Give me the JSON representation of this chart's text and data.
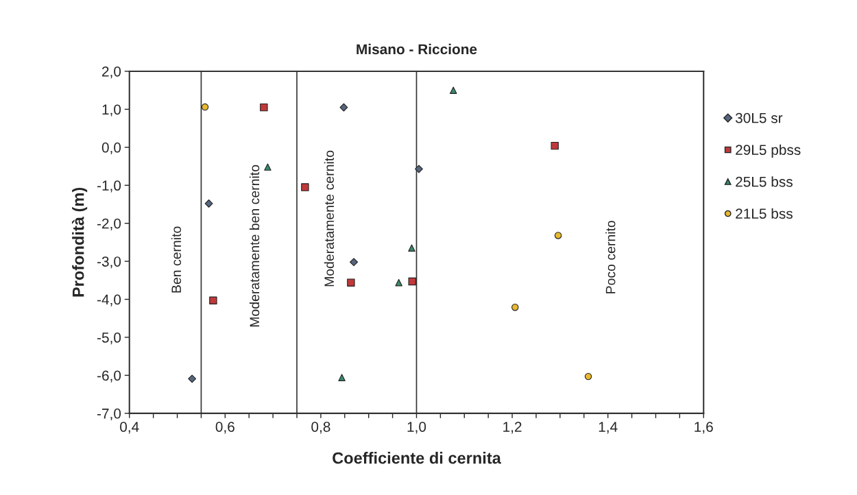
{
  "chart_data": {
    "type": "scatter",
    "title": "Misano - Riccione",
    "xlabel": "Coefficiente di cernita",
    "ylabel": "Profondità (m)",
    "series": [
      {
        "name": "30L5 sr",
        "color": "#56667e",
        "marker": "diamond",
        "x": [
          0.848,
          1.005,
          0.566,
          0.869,
          0.531
        ],
        "values": [
          1.05,
          -0.57,
          -1.48,
          -3.02,
          -6.09
        ]
      },
      {
        "name": "29L5 pbss",
        "color": "#c0393b",
        "marker": "square",
        "x": [
          0.681,
          1.289,
          0.767,
          0.863,
          0.991,
          0.575
        ],
        "values": [
          1.05,
          0.04,
          -1.05,
          -3.56,
          -3.53,
          -4.03
        ]
      },
      {
        "name": "25L5 bss",
        "color": "#3a8a6a",
        "marker": "triangle",
        "x": [
          1.077,
          0.689,
          0.99,
          0.963,
          0.844
        ],
        "values": [
          1.5,
          -0.52,
          -2.65,
          -3.56,
          -6.06
        ]
      },
      {
        "name": "21L5 bss",
        "color": "#e8b830",
        "marker": "circle",
        "x": [
          0.558,
          1.296,
          1.206,
          1.359
        ],
        "values": [
          1.06,
          -2.32,
          -4.21,
          -6.03
        ]
      }
    ],
    "xlim": [
      0.4,
      1.6
    ],
    "ylim": [
      -7.0,
      2.0
    ],
    "xticks": [
      {
        "value": 0.4,
        "label": "0,4"
      },
      {
        "value": 0.45,
        "label": null
      },
      {
        "value": 0.5,
        "label": null
      },
      {
        "value": 0.55,
        "label": null
      },
      {
        "value": 0.6,
        "label": "0,6"
      },
      {
        "value": 0.65,
        "label": null
      },
      {
        "value": 0.7,
        "label": null
      },
      {
        "value": 0.75,
        "label": null
      },
      {
        "value": 0.8,
        "label": "0,8"
      },
      {
        "value": 0.85,
        "label": null
      },
      {
        "value": 0.9,
        "label": null
      },
      {
        "value": 0.95,
        "label": null
      },
      {
        "value": 1.0,
        "label": "1,0"
      },
      {
        "value": 1.05,
        "label": null
      },
      {
        "value": 1.1,
        "label": null
      },
      {
        "value": 1.15,
        "label": null
      },
      {
        "value": 1.2,
        "label": "1,2"
      },
      {
        "value": 1.25,
        "label": null
      },
      {
        "value": 1.3,
        "label": null
      },
      {
        "value": 1.35,
        "label": null
      },
      {
        "value": 1.4,
        "label": "1,4"
      },
      {
        "value": 1.45,
        "label": null
      },
      {
        "value": 1.5,
        "label": null
      },
      {
        "value": 1.55,
        "label": null
      },
      {
        "value": 1.6,
        "label": "1,6"
      }
    ],
    "yticks": [
      {
        "value": 2,
        "label": "2,0"
      },
      {
        "value": 1,
        "label": "1,0"
      },
      {
        "value": 0,
        "label": "0,0"
      },
      {
        "value": -1,
        "label": "-1,0"
      },
      {
        "value": -2,
        "label": "-2,0"
      },
      {
        "value": -3,
        "label": "-3,0"
      },
      {
        "value": -4,
        "label": "-4,0"
      },
      {
        "value": -5,
        "label": "-5,0"
      },
      {
        "value": -6,
        "label": "-6,0"
      },
      {
        "value": -7,
        "label": "-7,0"
      }
    ],
    "ref_lines": [
      {
        "axis": "x",
        "value": 0.55,
        "color": "#333333"
      },
      {
        "axis": "x",
        "value": 0.75,
        "color": "#333333"
      },
      {
        "axis": "x",
        "value": 1.0,
        "color": "#333333"
      }
    ],
    "annotations": [
      "Ben cernito",
      "Moderatamente ben cernito",
      "Moderatamente cernito",
      "Poco cernito"
    ],
    "grid": false,
    "legend": "right"
  }
}
